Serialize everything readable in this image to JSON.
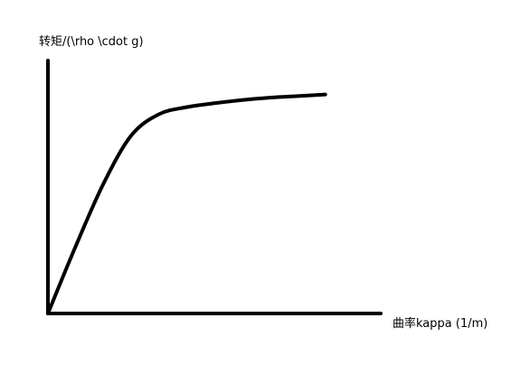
{
  "colors": {
    "background": "#ffffff",
    "ink": "#000000"
  },
  "chart_data": {
    "type": "line",
    "title": "",
    "xlabel": "曲率kappa (1/m)",
    "ylabel": "转矩/(\\rho \\cdot g)",
    "grid": false,
    "legend": "none",
    "series": [
      {
        "values": [
          [
            0,
            0
          ],
          [
            10,
            8.5
          ],
          [
            20,
            16.4
          ],
          [
            30,
            22.5
          ],
          [
            40,
            25.2
          ],
          [
            50,
            26.1
          ],
          [
            60,
            26.6
          ],
          [
            70,
            27.0
          ],
          [
            80,
            27.3
          ],
          [
            90,
            27.5
          ],
          [
            100,
            27.7
          ]
        ]
      }
    ]
  }
}
